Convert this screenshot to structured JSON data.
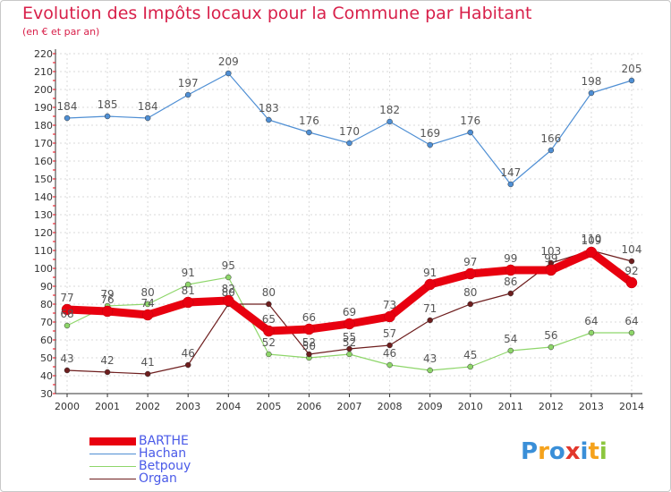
{
  "header": {
    "title": "Evolution des Impôts locaux pour la Commune par Habitant",
    "subtitle": "(en € et par an)"
  },
  "logo": {
    "text": "Proxiti",
    "colors": [
      "#3a8fd8",
      "#f5a21c",
      "#3a8fd8",
      "#e2372c",
      "#3a8fd8",
      "#f5a21c",
      "#8cc63e"
    ]
  },
  "chart_data": {
    "type": "line",
    "title": "Evolution des Impôts locaux pour la Commune par Habitant",
    "subtitle": "(en € et par an)",
    "x": [
      "2000",
      "2001",
      "2002",
      "2003",
      "2004",
      "2005",
      "2006",
      "2007",
      "2008",
      "2009",
      "2010",
      "2011",
      "2012",
      "2013",
      "2014"
    ],
    "ylim": [
      30,
      220
    ],
    "yticks": [
      30,
      40,
      50,
      60,
      70,
      80,
      90,
      100,
      110,
      120,
      130,
      140,
      150,
      160,
      170,
      180,
      190,
      200,
      210,
      220
    ],
    "grid": true,
    "legend_position": "bottom-left",
    "series": [
      {
        "name": "BARTHE",
        "color": "#e8000f",
        "values": [
          77,
          76,
          74,
          81,
          82,
          65,
          66,
          69,
          73,
          91,
          97,
          99,
          99,
          109,
          92
        ]
      },
      {
        "name": "Hachan",
        "color": "#4f8fd4",
        "values": [
          184,
          185,
          184,
          197,
          209,
          183,
          176,
          170,
          182,
          169,
          176,
          147,
          166,
          198,
          205
        ]
      },
      {
        "name": "Betpouy",
        "color": "#8ed66a",
        "values": [
          68,
          79,
          80,
          91,
          95,
          52,
          50,
          52,
          46,
          43,
          45,
          54,
          56,
          64,
          64
        ]
      },
      {
        "name": "Organ",
        "color": "#6e1e1e",
        "values": [
          43,
          42,
          41,
          46,
          80,
          80,
          52,
          55,
          57,
          71,
          80,
          86,
          103,
          110,
          104
        ]
      }
    ]
  }
}
